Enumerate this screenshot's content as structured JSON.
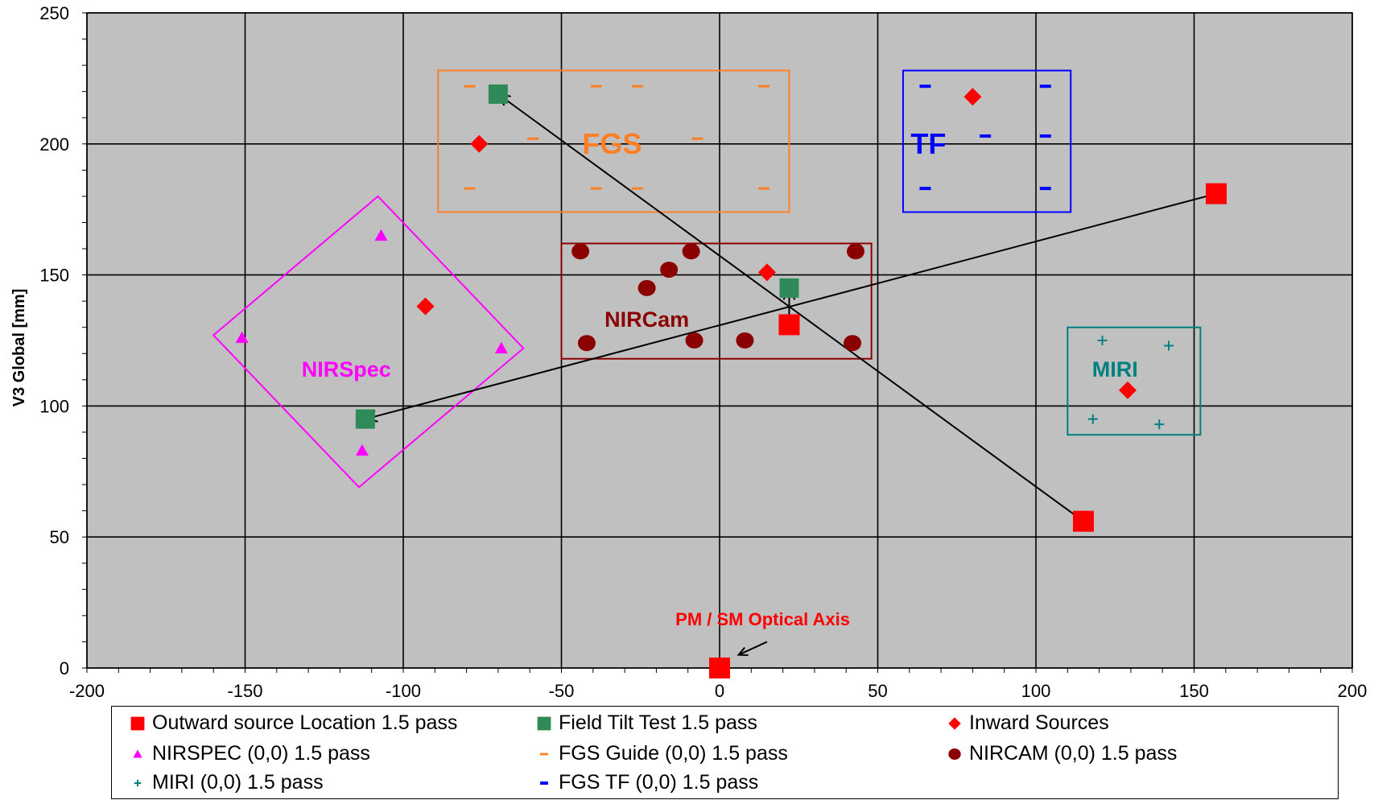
{
  "chart_data": {
    "type": "scatter",
    "title": "",
    "xlabel": "",
    "ylabel": "V3 Global [mm]",
    "xlim": [
      -200,
      200
    ],
    "ylim": [
      0,
      250
    ],
    "x_ticks": [
      -200,
      -150,
      -100,
      -50,
      0,
      50,
      100,
      150,
      200
    ],
    "y_ticks": [
      0,
      50,
      100,
      150,
      200,
      250
    ],
    "grid": true,
    "legend_position": "bottom",
    "series": [
      {
        "name": "Outward source Location 1.5 pass",
        "marker": "square",
        "color": "#ff0000",
        "points": [
          [
            0,
            0
          ],
          [
            157,
            181
          ],
          [
            115,
            56
          ],
          [
            22,
            131
          ]
        ]
      },
      {
        "name": "Field Tilt Test 1.5 pass",
        "marker": "square",
        "color": "#2e8b57",
        "points": [
          [
            -70,
            219
          ],
          [
            -112,
            95
          ],
          [
            22,
            145
          ]
        ]
      },
      {
        "name": "Inward Sources",
        "marker": "diamond",
        "color": "#ff0000",
        "points": [
          [
            -76,
            200
          ],
          [
            80,
            218
          ],
          [
            -93,
            138
          ],
          [
            15,
            151
          ],
          [
            129,
            106
          ]
        ]
      },
      {
        "name": "NIRSPEC (0,0) 1.5 pass",
        "marker": "triangle",
        "color": "#ff00ff",
        "points": [
          [
            -107,
            165
          ],
          [
            -151,
            126
          ],
          [
            -69,
            122
          ],
          [
            -113,
            83
          ]
        ]
      },
      {
        "name": "FGS Guide (0,0) 1.5 pass",
        "marker": "dash",
        "color": "#ff7f27",
        "points": [
          [
            -79,
            222
          ],
          [
            -39,
            222
          ],
          [
            -26,
            222
          ],
          [
            14,
            222
          ],
          [
            -59,
            202
          ],
          [
            -7,
            202
          ],
          [
            -79,
            183
          ],
          [
            -39,
            183
          ],
          [
            -26,
            183
          ],
          [
            14,
            183
          ]
        ]
      },
      {
        "name": "NIRCAM (0,0) 1.5 pass",
        "marker": "circle",
        "color": "#8b0000",
        "points": [
          [
            -44,
            159
          ],
          [
            -9,
            159
          ],
          [
            43,
            159
          ],
          [
            -16,
            152
          ],
          [
            -23,
            145
          ],
          [
            22,
            145
          ],
          [
            -42,
            124
          ],
          [
            -8,
            125
          ],
          [
            8,
            125
          ],
          [
            42,
            124
          ]
        ]
      },
      {
        "name": "MIRI (0,0) 1.5 pass",
        "marker": "plus",
        "color": "#008080",
        "points": [
          [
            121,
            125
          ],
          [
            142,
            123
          ],
          [
            118,
            95
          ],
          [
            139,
            93
          ]
        ]
      },
      {
        "name": "FGS TF (0,0) 1.5 pass",
        "marker": "dash",
        "color": "#0000ff",
        "points": [
          [
            65,
            222
          ],
          [
            103,
            222
          ],
          [
            84,
            203
          ],
          [
            103,
            203
          ],
          [
            65,
            183
          ],
          [
            103,
            183
          ]
        ]
      }
    ],
    "instrument_boxes": [
      {
        "label": "FGS",
        "color": "#ff7f27",
        "corners": [
          [
            -89,
            228
          ],
          [
            22,
            228
          ],
          [
            22,
            174
          ],
          [
            -89,
            174
          ]
        ]
      },
      {
        "label": "TF",
        "color": "#0000ff",
        "corners": [
          [
            58,
            228
          ],
          [
            111,
            228
          ],
          [
            111,
            174
          ],
          [
            58,
            174
          ]
        ]
      },
      {
        "label": "NIRCam",
        "color": "#8b0000",
        "corners": [
          [
            -50,
            162
          ],
          [
            48,
            162
          ],
          [
            48,
            118
          ],
          [
            -50,
            118
          ]
        ]
      },
      {
        "label": "MIRI",
        "color": "#008080",
        "corners": [
          [
            110,
            130
          ],
          [
            152,
            130
          ],
          [
            152,
            89
          ],
          [
            110,
            89
          ]
        ]
      },
      {
        "label": "NIRSpec",
        "color": "#ff00ff",
        "corners": [
          [
            -108,
            180
          ],
          [
            -62,
            122
          ],
          [
            -114,
            69
          ],
          [
            -160,
            127
          ]
        ]
      }
    ],
    "arrows": [
      {
        "from": [
          115,
          56
        ],
        "to": [
          -70,
          219
        ]
      },
      {
        "from": [
          157,
          181
        ],
        "to": [
          -112,
          95
        ]
      },
      {
        "from": [
          22,
          131
        ],
        "to": [
          22,
          145
        ]
      }
    ],
    "annotations": [
      {
        "text": "PM / SM  Optical  Axis",
        "color": "#ff0000",
        "x": 6,
        "y": 15,
        "arrow_to": [
          6,
          5
        ],
        "arrow_from": [
          15,
          10
        ]
      }
    ],
    "box_labels": [
      {
        "text": "FGS",
        "x": -34,
        "y": 200,
        "color": "#ff7f27"
      },
      {
        "text": "TF",
        "x": 66,
        "y": 200,
        "color": "#0000ff"
      },
      {
        "text": "NIRCam",
        "x": -23,
        "y": 133,
        "color": "#8b0000"
      },
      {
        "text": "NIRSpec",
        "x": -118,
        "y": 114,
        "color": "#ff00ff"
      },
      {
        "text": "MIRI",
        "x": 125,
        "y": 114,
        "color": "#008080"
      }
    ]
  },
  "legend": [
    {
      "label": "Outward source Location 1.5 pass",
      "marker": "square",
      "color": "#ff0000"
    },
    {
      "label": "Field Tilt Test 1.5 pass",
      "marker": "square",
      "color": "#2e8b57"
    },
    {
      "label": "Inward Sources",
      "marker": "diamond",
      "color": "#ff0000"
    },
    {
      "label": "NIRSPEC (0,0) 1.5 pass",
      "marker": "triangle",
      "color": "#ff00ff"
    },
    {
      "label": "FGS Guide (0,0) 1.5 pass",
      "marker": "dash",
      "color": "#ff7f27"
    },
    {
      "label": "NIRCAM (0,0) 1.5 pass",
      "marker": "circle",
      "color": "#8b0000"
    },
    {
      "label": "MIRI (0,0) 1.5 pass",
      "marker": "plus",
      "color": "#008080"
    },
    {
      "label": "FGS TF (0,0) 1.5 pass",
      "marker": "dash",
      "color": "#0000ff"
    }
  ]
}
